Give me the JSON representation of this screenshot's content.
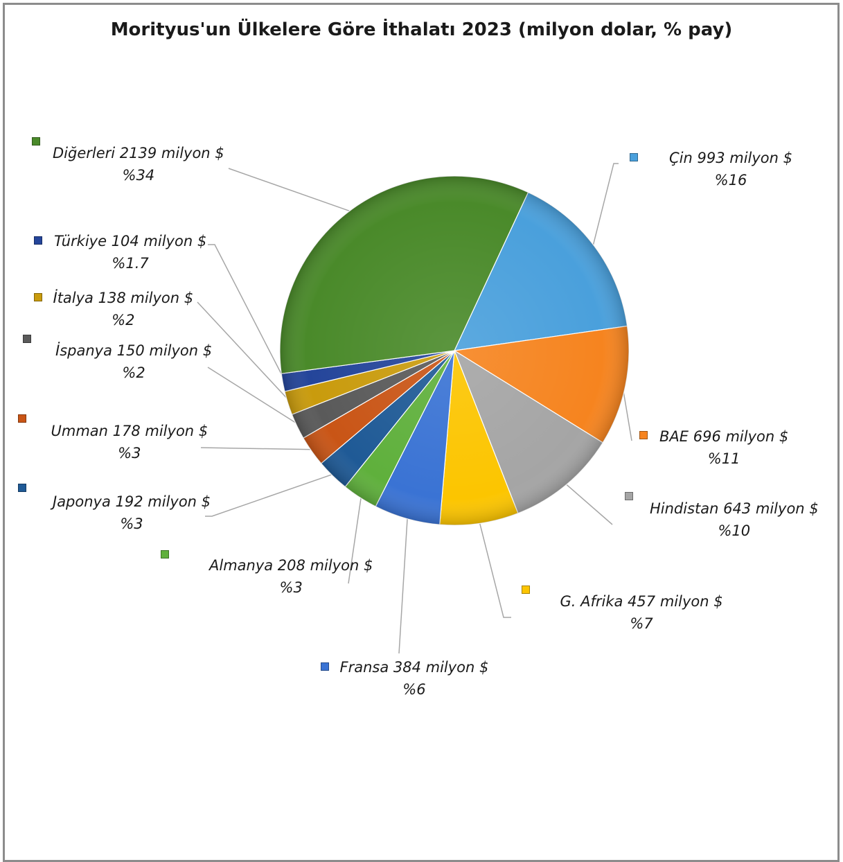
{
  "chart_data": {
    "type": "pie",
    "title": "Morityus'un Ülkelere Göre İthalatı 2023 (milyon dolar, % pay)",
    "slices": [
      {
        "label": "Çin 993 milyon $",
        "pct_label": "%16",
        "value": 993,
        "color": "#4aa0dc"
      },
      {
        "label": "BAE 696 milyon $",
        "pct_label": "%11",
        "value": 696,
        "color": "#f6841f"
      },
      {
        "label": "Hindistan 643 milyon $",
        "pct_label": "%10",
        "value": 643,
        "color": "#a5a5a5"
      },
      {
        "label": "G. Afrika 457 milyon $",
        "pct_label": "%7",
        "value": 457,
        "color": "#fcc500"
      },
      {
        "label": "Fransa 384 milyon $",
        "pct_label": "%6",
        "value": 384,
        "color": "#3a73d4"
      },
      {
        "label": "Almanya 208 milyon $",
        "pct_label": "%3",
        "value": 208,
        "color": "#5fb03c"
      },
      {
        "label": "Japonya 192 milyon $",
        "pct_label": "%3",
        "value": 192,
        "color": "#1f5a96"
      },
      {
        "label": "Umman 178 milyon $",
        "pct_label": "%3",
        "value": 178,
        "color": "#c95516"
      },
      {
        "label": "İspanya 150 milyon $",
        "pct_label": "%2",
        "value": 150,
        "color": "#5a5a5a"
      },
      {
        "label": "İtalya 138 milyon $",
        "pct_label": "%2",
        "value": 138,
        "color": "#c99b0d"
      },
      {
        "label": "Türkiye 104 milyon $",
        "pct_label": "%1.7",
        "value": 104,
        "color": "#24459a"
      },
      {
        "label": "Diğerleri 2139 milyon $",
        "pct_label": "%34",
        "value": 2139,
        "color": "#4a8a2a"
      }
    ],
    "legend": "none"
  }
}
